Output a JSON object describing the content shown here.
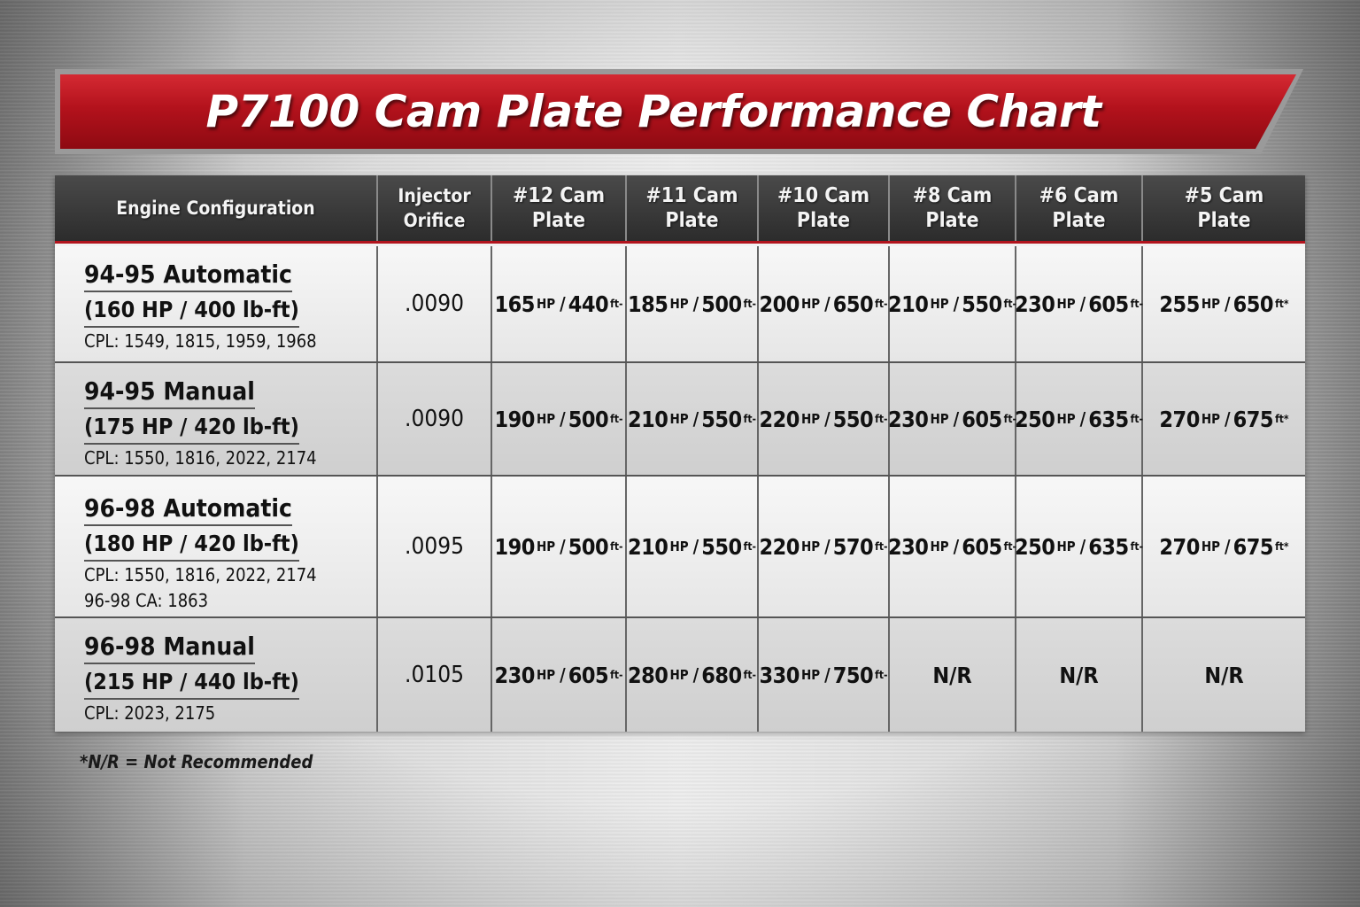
{
  "title": "P7100 Cam Plate Performance Chart",
  "columns": {
    "config": "Engine Configuration",
    "orifice": [
      "Injector",
      "Orifice"
    ],
    "plates": [
      [
        "#12 Cam",
        "Plate"
      ],
      [
        "#11 Cam",
        "Plate"
      ],
      [
        "#10 Cam",
        "Plate"
      ],
      [
        "#8 Cam",
        "Plate"
      ],
      [
        "#6 Cam",
        "Plate"
      ],
      [
        "#5 Cam",
        "Plate"
      ]
    ]
  },
  "rows": [
    {
      "name": "94-95 Automatic",
      "spec": "(160 HP / 400 lb-ft)",
      "cpl": [
        "CPL: 1549, 1815, 1959, 1968"
      ],
      "orifice": ".0090",
      "cells": [
        {
          "hp": "165",
          "hp_unit": "HP",
          "tq": "440",
          "tq_unit": "ft-"
        },
        {
          "hp": "185",
          "hp_unit": "HP",
          "tq": "500",
          "tq_unit": "ft-"
        },
        {
          "hp": "200",
          "hp_unit": "HP",
          "tq": "650",
          "tq_unit": "ft-"
        },
        {
          "hp": "210",
          "hp_unit": "HP",
          "tq": "550",
          "tq_unit": "ft-"
        },
        {
          "hp": "230",
          "hp_unit": "HP",
          "tq": "605",
          "tq_unit": "ft-"
        },
        {
          "hp": "255",
          "hp_unit": "HP",
          "tq": "650",
          "tq_unit": "ft*"
        }
      ]
    },
    {
      "name": "94-95 Manual",
      "spec": "(175 HP / 420 lb-ft)",
      "cpl": [
        "CPL: 1550, 1816, 2022, 2174"
      ],
      "orifice": ".0090",
      "cells": [
        {
          "hp": "190",
          "hp_unit": "HP",
          "tq": "500",
          "tq_unit": "ft-"
        },
        {
          "hp": "210",
          "hp_unit": "HP",
          "tq": "550",
          "tq_unit": "ft-"
        },
        {
          "hp": "220",
          "hp_unit": "HP",
          "tq": "550",
          "tq_unit": "ft-"
        },
        {
          "hp": "230",
          "hp_unit": "HP",
          "tq": "605",
          "tq_unit": "ft-"
        },
        {
          "hp": "250",
          "hp_unit": "HP",
          "tq": "635",
          "tq_unit": "ft-"
        },
        {
          "hp": "270",
          "hp_unit": "HP",
          "tq": "675",
          "tq_unit": "ft*"
        }
      ]
    },
    {
      "name": "96-98 Automatic",
      "spec": "(180 HP / 420 lb-ft)",
      "cpl": [
        "CPL: 1550, 1816, 2022, 2174",
        "96-98 CA: 1863"
      ],
      "orifice": ".0095",
      "cells": [
        {
          "hp": "190",
          "hp_unit": "HP",
          "tq": "500",
          "tq_unit": "ft-"
        },
        {
          "hp": "210",
          "hp_unit": "HP",
          "tq": "550",
          "tq_unit": "ft-"
        },
        {
          "hp": "220",
          "hp_unit": "HP",
          "tq": "570",
          "tq_unit": "ft-"
        },
        {
          "hp": "230",
          "hp_unit": "HP",
          "tq": "605",
          "tq_unit": "ft-"
        },
        {
          "hp": "250",
          "hp_unit": "HP",
          "tq": "635",
          "tq_unit": "ft-"
        },
        {
          "hp": "270",
          "hp_unit": "HP",
          "tq": "675",
          "tq_unit": "ft*"
        }
      ]
    },
    {
      "name": "96-98 Manual",
      "spec": "(215 HP / 440 lb-ft)",
      "cpl": [
        "CPL: 2023, 2175"
      ],
      "orifice": ".0105",
      "cells": [
        {
          "hp": "230",
          "hp_unit": "HP",
          "tq": "605",
          "tq_unit": "ft-"
        },
        {
          "hp": "280",
          "hp_unit": "HP",
          "tq": "680",
          "tq_unit": "ft-"
        },
        {
          "hp": "330",
          "hp_unit": "HP",
          "tq": "750",
          "tq_unit": "ft-"
        },
        {
          "text": "N/R"
        },
        {
          "text": "N/R"
        },
        {
          "text": "N/R"
        }
      ]
    }
  ],
  "footnote": "*N/R = Not Recommended",
  "colors": {
    "banner": "#b3121c",
    "header_bg": "#2c2c2c",
    "header_rule": "#b2141d"
  },
  "chart_data": {
    "type": "table",
    "title": "P7100 Cam Plate Performance Chart",
    "columns": [
      "Engine Configuration",
      "Injector Orifice",
      "#12 Cam Plate",
      "#11 Cam Plate",
      "#10 Cam Plate",
      "#8 Cam Plate",
      "#6 Cam Plate",
      "#5 Cam Plate"
    ],
    "rows": [
      [
        "94-95 Automatic (160 HP / 400 lb-ft) CPL: 1549, 1815, 1959, 1968",
        ".0090",
        "165 HP / 440 ft-",
        "185 HP / 500 ft-",
        "200 HP / 650 ft-",
        "210 HP / 550 ft-",
        "230 HP / 605 ft-",
        "255 HP / 650 ft*"
      ],
      [
        "94-95 Manual (175 HP / 420 lb-ft) CPL: 1550, 1816, 2022, 2174",
        ".0090",
        "190 HP / 500 ft-",
        "210 HP / 550 ft-",
        "220 HP / 550 ft-",
        "230 HP / 605 ft-",
        "250 HP / 635 ft-",
        "270 HP / 675 ft*"
      ],
      [
        "96-98 Automatic (180 HP / 420 lb-ft) CPL: 1550, 1816, 2022, 2174 96-98 CA: 1863",
        ".0095",
        "190 HP / 500 ft-",
        "210 HP / 550 ft-",
        "220 HP / 570 ft-",
        "230 HP / 605 ft-",
        "250 HP / 635 ft-",
        "270 HP / 675 ft*"
      ],
      [
        "96-98 Manual (215 HP / 440 lb-ft) CPL: 2023, 2175",
        ".0105",
        "230 HP / 605 ft-",
        "280 HP / 680 ft-",
        "330 HP / 750 ft-",
        "N/R",
        "N/R",
        "N/R"
      ]
    ]
  }
}
